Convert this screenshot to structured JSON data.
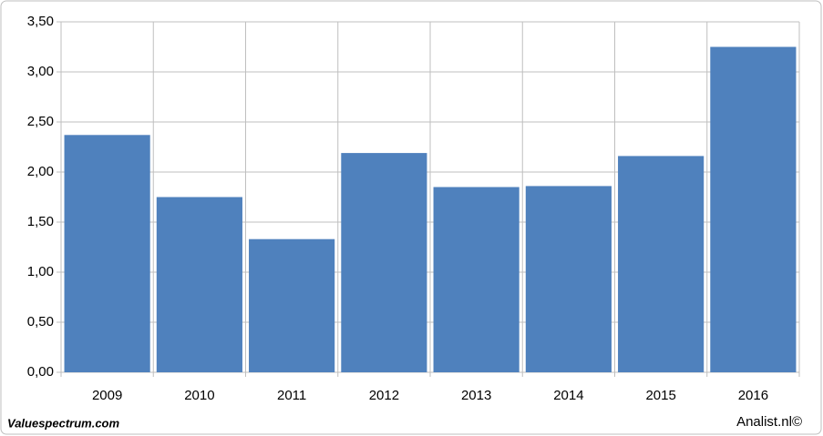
{
  "chart_data": {
    "type": "bar",
    "categories": [
      "2009",
      "2010",
      "2011",
      "2012",
      "2013",
      "2014",
      "2015",
      "2016"
    ],
    "values": [
      2.37,
      1.75,
      1.33,
      2.19,
      1.85,
      1.86,
      2.16,
      3.25
    ],
    "color": "#4f81bd",
    "ylim": [
      0,
      3.5
    ],
    "yticks": [
      {
        "value": 0,
        "label": "0,00"
      },
      {
        "value": 0.5,
        "label": "0,50"
      },
      {
        "value": 1,
        "label": "1,00"
      },
      {
        "value": 1.5,
        "label": "1,50"
      },
      {
        "value": 2,
        "label": "2,00"
      },
      {
        "value": 2.5,
        "label": "2,50"
      },
      {
        "value": 3,
        "label": "3,00"
      },
      {
        "value": 3.5,
        "label": "3,50"
      }
    ],
    "grid": true
  },
  "footer": {
    "left": "Valuespectrum.com",
    "right": "Analist.nl©"
  }
}
